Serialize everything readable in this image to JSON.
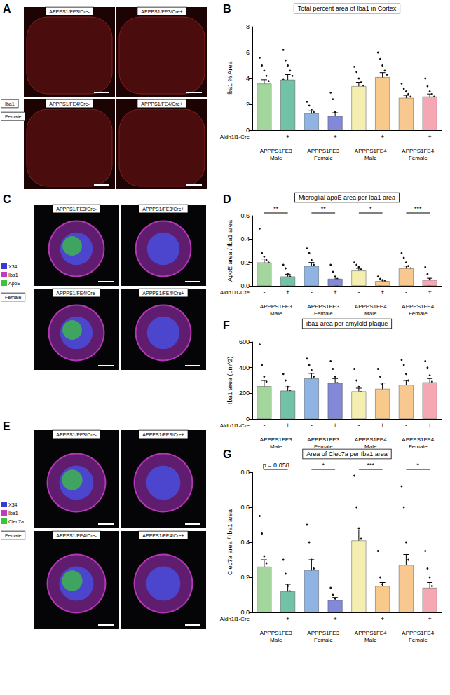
{
  "chart_data": [
    {
      "type": "bar",
      "panel_label": "B",
      "title": "Total percent area of Iba1 in Cortex",
      "y_label": "Iba1 % Area",
      "x_label": "Aldh1l1-Cre",
      "categories": [
        "-",
        "+",
        "-",
        "+",
        "-",
        "+",
        "-",
        "+"
      ],
      "groups": [
        "APPPS1FE3\nMale",
        "APPPS1FE3\nFemale",
        "APPPS1FE4\nMale",
        "APPPS1FE4\nFemale"
      ],
      "values": [
        3.6,
        3.9,
        1.3,
        1.1,
        3.4,
        4.1,
        2.5,
        2.6
      ],
      "sem": [
        0.3,
        0.4,
        0.2,
        0.25,
        0.3,
        0.35,
        0.2,
        0.2
      ],
      "points": [
        [
          5.6,
          5.0,
          4.6,
          4.2,
          3.8,
          3.5,
          3.2,
          2.9,
          2.6,
          2.2,
          1.9,
          1.6
        ],
        [
          6.2,
          5.4,
          5.0,
          4.6,
          4.2,
          3.9,
          3.6,
          3.2,
          2.8,
          2.5,
          2.0
        ],
        [
          2.2,
          1.9,
          1.6,
          1.4,
          1.2,
          1.1,
          1.0,
          0.8,
          0.6,
          0.5
        ],
        [
          2.9,
          2.4,
          1.4,
          1.0,
          0.8,
          0.7,
          0.6,
          0.5,
          0.4,
          0.3
        ],
        [
          4.9,
          4.5,
          4.0,
          3.7,
          3.4,
          3.2,
          3.0,
          2.6,
          2.3,
          1.9
        ],
        [
          6.0,
          5.5,
          5.0,
          4.6,
          4.3,
          4.0,
          3.8,
          3.5,
          3.2,
          2.8,
          2.6,
          2.4
        ],
        [
          3.6,
          3.2,
          3.0,
          2.8,
          2.6,
          2.4,
          2.2,
          2.0,
          1.8,
          1.6,
          1.5
        ],
        [
          4.0,
          3.4,
          3.0,
          2.8,
          2.6,
          2.4,
          2.2,
          2.0,
          1.8,
          1.6
        ]
      ],
      "colors": [
        "#a3d69c",
        "#72c2a6",
        "#8fb4e3",
        "#8289d8",
        "#f4efb0",
        "#f7c98a",
        "#f9c790",
        "#f5a8b4"
      ],
      "ylim": [
        0,
        8
      ],
      "yticks": [
        0,
        2,
        4,
        6,
        8
      ],
      "grid": false
    },
    {
      "type": "bar",
      "panel_label": "D",
      "title": "Microglial apoE area per Iba1 area",
      "y_label": "ApoE area / Iba1 area",
      "x_label": "Aldh1l1-Cre",
      "categories": [
        "-",
        "+",
        "-",
        "+",
        "-",
        "+",
        "-",
        "+"
      ],
      "groups": [
        "APPPS1FE3\nMale",
        "APPPS1FE3\nFemale",
        "APPPS1FE4\nMale",
        "APPPS1FE4\nFemale"
      ],
      "values": [
        0.2,
        0.08,
        0.17,
        0.06,
        0.13,
        0.04,
        0.15,
        0.05
      ],
      "sem": [
        0.03,
        0.02,
        0.03,
        0.015,
        0.02,
        0.01,
        0.02,
        0.015
      ],
      "points": [
        [
          0.49,
          0.28,
          0.25,
          0.22,
          0.2,
          0.18,
          0.16,
          0.15,
          0.13,
          0.12,
          0.1
        ],
        [
          0.18,
          0.15,
          0.1,
          0.08,
          0.06,
          0.04,
          0.02,
          0.01
        ],
        [
          0.32,
          0.28,
          0.22,
          0.18,
          0.15,
          0.13,
          0.11,
          0.09,
          0.08
        ],
        [
          0.18,
          0.12,
          0.08,
          0.06,
          0.05,
          0.03,
          0.02,
          0.01,
          0.0
        ],
        [
          0.2,
          0.18,
          0.16,
          0.14,
          0.12,
          0.1,
          0.08,
          0.06
        ],
        [
          0.08,
          0.06,
          0.05,
          0.04,
          0.03,
          0.02,
          0.01
        ],
        [
          0.28,
          0.24,
          0.2,
          0.17,
          0.15,
          0.14,
          0.12,
          0.1,
          0.08,
          0.06
        ],
        [
          0.16,
          0.1,
          0.06,
          0.04,
          0.03,
          0.02,
          0.01,
          0.0
        ]
      ],
      "colors": [
        "#a3d69c",
        "#72c2a6",
        "#8fb4e3",
        "#8289d8",
        "#f4efb0",
        "#f7c98a",
        "#f9c790",
        "#f5a8b4"
      ],
      "ylim": [
        0,
        0.6
      ],
      "yticks": [
        {
          "value": 0,
          "label": "0.0"
        },
        0.2,
        0.4,
        0.6
      ],
      "grid": false,
      "significance": [
        "**",
        "**",
        "*",
        "***"
      ]
    },
    {
      "type": "bar",
      "panel_label": "F",
      "title": "Iba1 area per amyloid plaque",
      "y_label": "Iba1 area (um^2)",
      "x_label": "Aldh1l1-Cre",
      "categories": [
        "-",
        "+",
        "-",
        "+",
        "-",
        "+",
        "-",
        "+"
      ],
      "groups": [
        "APPPS1FE3\nMale",
        "APPPS1FE3\nFemale",
        "APPPS1FE4\nMale",
        "APPPS1FE4\nFemale"
      ],
      "values": [
        255,
        220,
        315,
        280,
        215,
        235,
        265,
        285
      ],
      "sem": [
        45,
        30,
        40,
        35,
        25,
        45,
        35,
        30
      ],
      "points": [
        [
          580,
          420,
          330,
          290,
          240,
          200,
          160,
          130,
          100,
          60
        ],
        [
          350,
          300,
          250,
          220,
          200,
          180,
          150,
          120
        ],
        [
          470,
          420,
          380,
          330,
          300,
          260,
          220,
          150
        ],
        [
          450,
          390,
          330,
          280,
          250,
          220,
          180
        ],
        [
          390,
          300,
          250,
          210,
          180,
          150,
          120,
          100
        ],
        [
          390,
          330,
          270,
          220,
          150,
          100,
          60
        ],
        [
          460,
          420,
          350,
          300,
          260,
          230,
          200,
          150,
          120,
          90
        ],
        [
          450,
          400,
          340,
          290,
          240,
          200,
          150,
          100
        ]
      ],
      "colors": [
        "#a3d69c",
        "#72c2a6",
        "#8fb4e3",
        "#8289d8",
        "#f4efb0",
        "#f7c98a",
        "#f9c790",
        "#f5a8b4"
      ],
      "ylim": [
        0,
        600
      ],
      "yticks": [
        0,
        200,
        400,
        600
      ],
      "grid": false
    },
    {
      "type": "bar",
      "panel_label": "G",
      "title": "Area of Clec7a per Iba1 area",
      "y_label": "Clec7a area / Iba1 area",
      "x_label": "Aldh1l1-Cre",
      "categories": [
        "-",
        "+",
        "-",
        "+",
        "-",
        "+",
        "-",
        "+"
      ],
      "groups": [
        "APPPS1FE3\nMale",
        "APPPS1FE3\nFemale",
        "APPPS1FE4\nMale",
        "APPPS1FE4\nFemale"
      ],
      "values": [
        0.26,
        0.12,
        0.24,
        0.07,
        0.41,
        0.15,
        0.27,
        0.14
      ],
      "sem": [
        0.04,
        0.04,
        0.06,
        0.015,
        0.06,
        0.02,
        0.06,
        0.03
      ],
      "points": [
        [
          0.55,
          0.45,
          0.32,
          0.28,
          0.25,
          0.22,
          0.2,
          0.18,
          0.15
        ],
        [
          0.3,
          0.22,
          0.15,
          0.12,
          0.08,
          0.05,
          0.02
        ],
        [
          0.5,
          0.4,
          0.3,
          0.25,
          0.2,
          0.15,
          0.1,
          0.05
        ],
        [
          0.14,
          0.1,
          0.08,
          0.06,
          0.05,
          0.03,
          0.02
        ],
        [
          0.78,
          0.6,
          0.48,
          0.42,
          0.35,
          0.3,
          0.2,
          0.15
        ],
        [
          0.35,
          0.2,
          0.16,
          0.14,
          0.12,
          0.1,
          0.08
        ],
        [
          0.72,
          0.6,
          0.4,
          0.3,
          0.25,
          0.2,
          0.15,
          0.1,
          0.08,
          0.05
        ],
        [
          0.35,
          0.25,
          0.2,
          0.15,
          0.12,
          0.1,
          0.08,
          0.05,
          0.03
        ]
      ],
      "colors": [
        "#a3d69c",
        "#72c2a6",
        "#8fb4e3",
        "#8289d8",
        "#f4efb0",
        "#f7c98a",
        "#f9c790",
        "#f5a8b4"
      ],
      "ylim": [
        0,
        0.8
      ],
      "yticks": [
        {
          "value": 0,
          "label": "0.0"
        },
        0.2,
        0.4,
        0.6,
        0.8
      ],
      "grid": false,
      "significance": [
        "p = 0.058",
        "*",
        "***",
        "*"
      ]
    }
  ],
  "image_panels": [
    {
      "panel_label": "A",
      "images": [
        "APPPS1/FE3/Cre-",
        "APPPS1/FE3/Cre+",
        "APPPS1/FE4/Cre-",
        "APPPS1/FE4/Cre+"
      ],
      "channels": [
        {
          "name": "Iba1",
          "color": "#000000"
        }
      ],
      "condition": "Female"
    },
    {
      "panel_label": "C",
      "images": [
        "APPPS1/FE3/Cre-",
        "APPPS1/FE3/Cre+",
        "APPPS1/FE4/Cre-",
        "APPPS1/FE4/Cre+"
      ],
      "channels": [
        {
          "name": "X34",
          "color": "#3a3ad0"
        },
        {
          "name": "Iba1",
          "color": "#c23cc2"
        },
        {
          "name": "ApoE",
          "color": "#3cc43c"
        }
      ],
      "condition": "Female"
    },
    {
      "panel_label": "E",
      "images": [
        "APPPS1/FE3/Cre-",
        "APPPS1/FE3/Cre+",
        "APPPS1/FE4/Cre-",
        "APPPS1/FE4/Cre+"
      ],
      "channels": [
        {
          "name": "X34",
          "color": "#3a3ad0"
        },
        {
          "name": "Iba1",
          "color": "#c23cc2"
        },
        {
          "name": "Clec7a",
          "color": "#3cc43c"
        }
      ],
      "condition": "Female"
    }
  ]
}
